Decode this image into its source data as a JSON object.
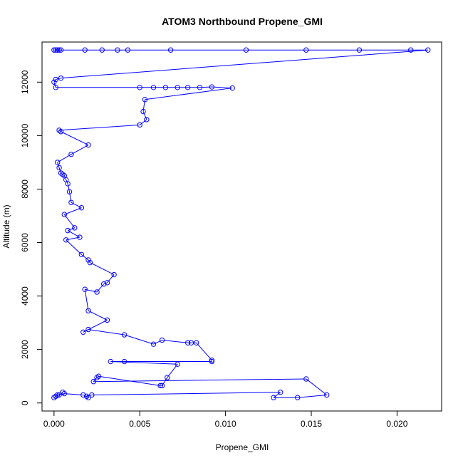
{
  "chart_data": {
    "type": "line",
    "title": "ATOM3 Northbound Propene_GMI",
    "xlabel": "Propene_GMI",
    "ylabel": "Altitude (m)",
    "xlim": [
      -0.0007,
      0.0226
    ],
    "ylim": [
      -300,
      13500
    ],
    "x_ticks": [
      0.0,
      0.005,
      0.01,
      0.015,
      0.02
    ],
    "x_tick_labels": [
      "0.000",
      "0.005",
      "0.010",
      "0.015",
      "0.020"
    ],
    "y_ticks": [
      0,
      2000,
      4000,
      6000,
      8000,
      10000,
      12000
    ],
    "y_tick_labels": [
      "0",
      "2000",
      "4000",
      "6000",
      "8000",
      "10000",
      "12000"
    ],
    "grid": false,
    "legend": "none",
    "series": [
      {
        "color": "#0000ff",
        "marker": "open-circle",
        "points": [
          [
            0.0,
            13200
          ],
          [
            0.0001,
            13200
          ],
          [
            0.0002,
            13200
          ],
          [
            0.0003,
            13200
          ],
          [
            0.0004,
            13200
          ],
          [
            0.0018,
            13200
          ],
          [
            0.0028,
            13200
          ],
          [
            0.0037,
            13200
          ],
          [
            0.0043,
            13200
          ],
          [
            0.0068,
            13200
          ],
          [
            0.0112,
            13200
          ],
          [
            0.0147,
            13200
          ],
          [
            0.0178,
            13200
          ],
          [
            0.0208,
            13200
          ],
          [
            0.0218,
            13200
          ],
          [
            0.0004,
            12150
          ],
          [
            0.0001,
            12100
          ],
          [
            0.0,
            12000
          ],
          [
            0.0001,
            11800
          ],
          [
            0.005,
            11800
          ],
          [
            0.0058,
            11800
          ],
          [
            0.0065,
            11800
          ],
          [
            0.0072,
            11800
          ],
          [
            0.0078,
            11800
          ],
          [
            0.0085,
            11800
          ],
          [
            0.0092,
            11820
          ],
          [
            0.0104,
            11780
          ],
          [
            0.0053,
            11350
          ],
          [
            0.0052,
            10900
          ],
          [
            0.0054,
            10600
          ],
          [
            0.005,
            10400
          ],
          [
            0.0003,
            10200
          ],
          [
            0.0004,
            10150
          ],
          [
            0.002,
            9650
          ],
          [
            0.001,
            9300
          ],
          [
            0.0002,
            9000
          ],
          [
            0.0003,
            8800
          ],
          [
            0.0004,
            8600
          ],
          [
            0.0005,
            8550
          ],
          [
            0.0006,
            8500
          ],
          [
            0.0007,
            8350
          ],
          [
            0.0008,
            8200
          ],
          [
            0.0009,
            7900
          ],
          [
            0.001,
            7500
          ],
          [
            0.0016,
            7300
          ],
          [
            0.0006,
            7050
          ],
          [
            0.0012,
            6550
          ],
          [
            0.0008,
            6450
          ],
          [
            0.0015,
            6200
          ],
          [
            0.0007,
            6100
          ],
          [
            0.0016,
            5550
          ],
          [
            0.002,
            5350
          ],
          [
            0.0021,
            5250
          ],
          [
            0.0035,
            4800
          ],
          [
            0.0031,
            4500
          ],
          [
            0.0029,
            4450
          ],
          [
            0.0025,
            4150
          ],
          [
            0.0018,
            4250
          ],
          [
            0.002,
            3450
          ],
          [
            0.0031,
            3100
          ],
          [
            0.0017,
            2650
          ],
          [
            0.002,
            2750
          ],
          [
            0.0041,
            2550
          ],
          [
            0.0058,
            2200
          ],
          [
            0.0063,
            2350
          ],
          [
            0.0078,
            2250
          ],
          [
            0.008,
            2250
          ],
          [
            0.0083,
            2250
          ],
          [
            0.0092,
            1600
          ],
          [
            0.0092,
            1550
          ],
          [
            0.0041,
            1550
          ],
          [
            0.0033,
            1550
          ],
          [
            0.0072,
            1450
          ],
          [
            0.0066,
            950
          ],
          [
            0.0063,
            650
          ],
          [
            0.0062,
            650
          ],
          [
            0.0026,
            1000
          ],
          [
            0.0025,
            950
          ],
          [
            0.0023,
            800
          ],
          [
            0.0147,
            900
          ],
          [
            0.0159,
            300
          ],
          [
            0.0142,
            200
          ],
          [
            0.0128,
            200
          ],
          [
            0.0132,
            400
          ],
          [
            0.0022,
            300
          ],
          [
            0.0019,
            250
          ],
          [
            0.002,
            200
          ],
          [
            0.0017,
            300
          ],
          [
            0.0006,
            350
          ],
          [
            0.0002,
            300
          ],
          [
            0.0,
            200
          ],
          [
            0.0001,
            250
          ],
          [
            0.0003,
            300
          ],
          [
            0.0005,
            400
          ]
        ]
      }
    ]
  }
}
